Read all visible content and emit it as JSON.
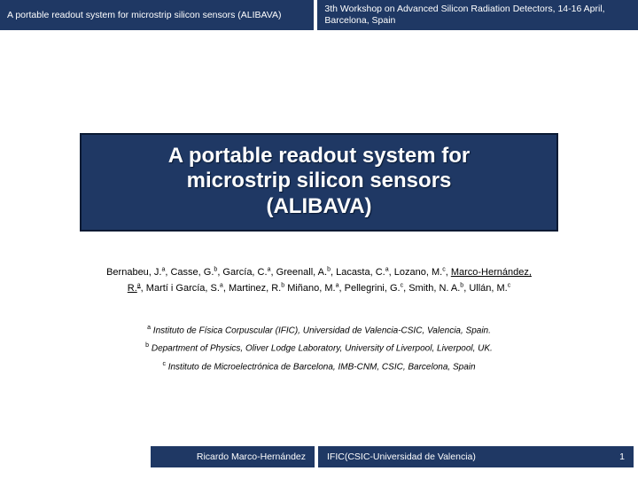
{
  "header": {
    "left": "A portable readout system for microstrip silicon sensors (ALIBAVA)",
    "right": "3th Workshop on Advanced Silicon Radiation Detectors, 14-16 April, Barcelona, Spain"
  },
  "title": {
    "line1": "A portable readout system for",
    "line2": "microstrip silicon sensors",
    "line3": "(ALIBAVA)"
  },
  "authors": {
    "part1": "Bernabeu, J.",
    "sup1": "a",
    "part2": ", Casse, G.",
    "sup2": "b",
    "part3": ", García, C.",
    "sup3": "a",
    "part4": ", Greenall, A.",
    "sup4": "b",
    "part5": ", Lacasta, C.",
    "sup5": "a",
    "part6": ", Lozano, M.",
    "sup6": "c",
    "part7": ", ",
    "highlight1": "Marco-Hernández,",
    "highlight2": "R.",
    "sup7": "a",
    "part8": ", Martí i García,  S.",
    "sup8": "a",
    "part9": ", Martinez, R.",
    "sup9": "b",
    "part10": " Miñano, M.",
    "sup10": "a",
    "part11": ", Pellegrini, G.",
    "sup11": "c",
    "part12": ", Smith, N. A.",
    "sup12": "b",
    "part13": ", Ullán, M.",
    "sup13": "c"
  },
  "affiliations": {
    "a": {
      "sup": "a",
      "text": " Instituto de Física Corpuscular (IFIC), Universidad de Valencia-CSIC, Valencia, Spain."
    },
    "b": {
      "sup": "b",
      "text": " Department of Physics, Oliver Lodge Laboratory, University of Liverpool, Liverpool, UK."
    },
    "c": {
      "sup": "c",
      "text": " Instituto de Microelectrónica de Barcelona, IMB-CNM, CSIC, Barcelona, Spain"
    }
  },
  "footer": {
    "author": "Ricardo Marco-Hernández",
    "institute": "IFIC(CSIC-Universidad de Valencia)",
    "page": "1"
  },
  "colors": {
    "bar": "#1f3864",
    "text_light": "#ffffff",
    "text_dark": "#000000"
  }
}
